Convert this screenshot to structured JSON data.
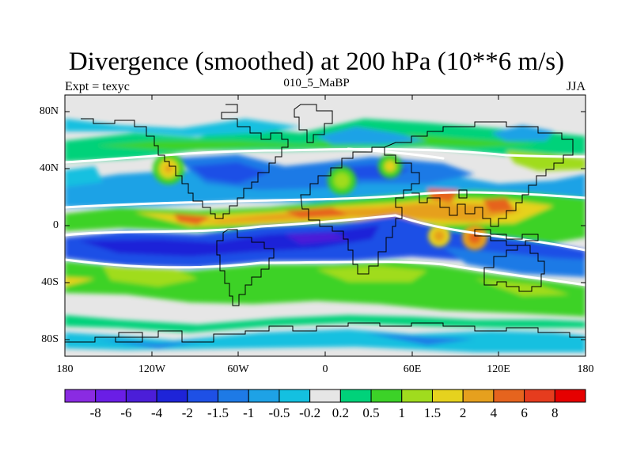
{
  "title": "Divergence (smoothed) at 200 hPa (10**6 m/s)",
  "left_label": "Expt = texyc",
  "center_label": "010_5_MaBP",
  "right_label": "JJA",
  "y_ticks": [
    "80N",
    "40N",
    "0",
    "40S",
    "80S"
  ],
  "x_ticks": [
    "180",
    "120W",
    "60W",
    "0",
    "60E",
    "120E",
    "180"
  ],
  "colorbar": {
    "labels": [
      "-8",
      "-6",
      "-4",
      "-2",
      "-1.5",
      "-1",
      "-0.5",
      "-0.2",
      "0.2",
      "0.5",
      "1",
      "1.5",
      "2",
      "4",
      "6",
      "8"
    ],
    "colors": [
      "#8a2be2",
      "#6a1ee6",
      "#4b1ed8",
      "#1e24d8",
      "#1e50e6",
      "#1e7ae6",
      "#1ea2e6",
      "#14c0e0",
      "#e6e6e6",
      "#00d27a",
      "#3cd228",
      "#a0dc1e",
      "#e6d21e",
      "#e6a01e",
      "#e6641e",
      "#e63c1e",
      "#e60000"
    ]
  }
}
